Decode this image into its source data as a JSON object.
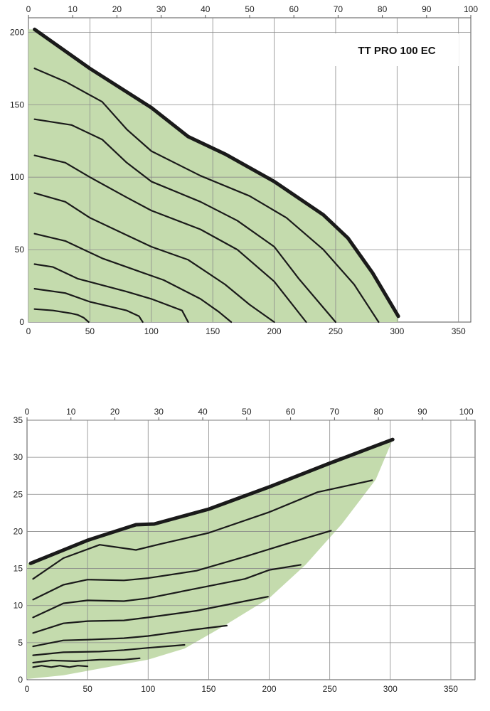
{
  "chart_data": [
    {
      "type": "line",
      "title": "TT PRO 100 EC",
      "xlim": [
        0,
        360
      ],
      "ylim": [
        0,
        210
      ],
      "x2lim": [
        0,
        100
      ],
      "x_ticks": [
        0,
        50,
        100,
        150,
        200,
        250,
        300,
        350
      ],
      "y_ticks": [
        0,
        50,
        100,
        150,
        200
      ],
      "x2_ticks": [
        0,
        10,
        20,
        30,
        40,
        50,
        60,
        70,
        80,
        90,
        100
      ],
      "grid": true,
      "fill_color": "#c4dbad",
      "line_color": "#1a1a1a",
      "envelope": [
        [
          3,
          202
        ],
        [
          50,
          175
        ],
        [
          100,
          148
        ],
        [
          130,
          128
        ],
        [
          160,
          116
        ],
        [
          200,
          97
        ],
        [
          240,
          74
        ],
        [
          260,
          58
        ],
        [
          280,
          34
        ],
        [
          301,
          4
        ],
        [
          301,
          0
        ],
        [
          0,
          0
        ],
        [
          0,
          202
        ]
      ],
      "series": [
        {
          "emphasis": "thick",
          "points": [
            [
              5,
              202
            ],
            [
              50,
              175
            ],
            [
              100,
              148
            ],
            [
              130,
              128
            ],
            [
              160,
              116
            ],
            [
              200,
              97
            ],
            [
              240,
              74
            ],
            [
              260,
              58
            ],
            [
              280,
              34
            ],
            [
              301,
              4
            ]
          ]
        },
        {
          "points": [
            [
              5,
              175
            ],
            [
              30,
              166
            ],
            [
              60,
              152
            ],
            [
              80,
              133
            ],
            [
              100,
              118
            ],
            [
              140,
              101
            ],
            [
              180,
              87
            ],
            [
              210,
              72
            ],
            [
              240,
              50
            ],
            [
              265,
              26
            ],
            [
              285,
              0
            ]
          ]
        },
        {
          "points": [
            [
              5,
              140
            ],
            [
              35,
              136
            ],
            [
              60,
              126
            ],
            [
              80,
              110
            ],
            [
              100,
              97
            ],
            [
              140,
              83
            ],
            [
              170,
              70
            ],
            [
              200,
              52
            ],
            [
              220,
              30
            ],
            [
              250,
              0
            ]
          ]
        },
        {
          "points": [
            [
              5,
              115
            ],
            [
              30,
              110
            ],
            [
              50,
              100
            ],
            [
              80,
              86
            ],
            [
              100,
              77
            ],
            [
              140,
              64
            ],
            [
              170,
              50
            ],
            [
              200,
              28
            ],
            [
              226,
              0
            ]
          ]
        },
        {
          "points": [
            [
              5,
              89
            ],
            [
              30,
              83
            ],
            [
              50,
              72
            ],
            [
              80,
              60
            ],
            [
              100,
              52
            ],
            [
              130,
              43
            ],
            [
              160,
              26
            ],
            [
              180,
              12
            ],
            [
              200,
              0
            ]
          ]
        },
        {
          "points": [
            [
              5,
              61
            ],
            [
              30,
              56
            ],
            [
              60,
              44
            ],
            [
              90,
              35
            ],
            [
              110,
              29
            ],
            [
              140,
              16
            ],
            [
              155,
              7
            ],
            [
              165,
              0
            ]
          ]
        },
        {
          "points": [
            [
              5,
              40
            ],
            [
              20,
              38
            ],
            [
              40,
              30
            ],
            [
              80,
              21
            ],
            [
              100,
              16
            ],
            [
              125,
              8
            ],
            [
              130,
              0
            ]
          ]
        },
        {
          "points": [
            [
              5,
              23
            ],
            [
              30,
              20
            ],
            [
              50,
              14
            ],
            [
              80,
              8
            ],
            [
              90,
              4
            ],
            [
              93,
              0
            ]
          ]
        },
        {
          "points": [
            [
              5,
              9
            ],
            [
              20,
              8
            ],
            [
              35,
              6
            ],
            [
              40,
              5
            ],
            [
              45,
              3
            ],
            [
              49,
              0
            ]
          ]
        }
      ]
    },
    {
      "type": "line",
      "xlim": [
        0,
        370
      ],
      "ylim": [
        0,
        35
      ],
      "x2lim": [
        0,
        102
      ],
      "x_ticks": [
        0,
        50,
        100,
        150,
        200,
        250,
        300,
        350
      ],
      "y_ticks": [
        0,
        5,
        10,
        15,
        20,
        25,
        30,
        35
      ],
      "x2_ticks": [
        0,
        10,
        20,
        30,
        40,
        50,
        60,
        70,
        80,
        90,
        100
      ],
      "grid": true,
      "fill_color": "#c4dbad",
      "line_color": "#1a1a1a",
      "envelope": [
        [
          3,
          15.7
        ],
        [
          50,
          18.8
        ],
        [
          90,
          20.9
        ],
        [
          105,
          21
        ],
        [
          150,
          23
        ],
        [
          200,
          26
        ],
        [
          250,
          29.2
        ],
        [
          302,
          32.4
        ],
        [
          288,
          27
        ],
        [
          260,
          21
        ],
        [
          230,
          15.5
        ],
        [
          200,
          11
        ],
        [
          160,
          7
        ],
        [
          130,
          4.2
        ],
        [
          100,
          2.7
        ],
        [
          60,
          1.5
        ],
        [
          30,
          0.6
        ],
        [
          0,
          0.1
        ],
        [
          0,
          15.7
        ]
      ],
      "series": [
        {
          "emphasis": "thick",
          "points": [
            [
              3,
              15.7
            ],
            [
              50,
              18.8
            ],
            [
              90,
              20.9
            ],
            [
              105,
              21
            ],
            [
              150,
              23
            ],
            [
              200,
              26
            ],
            [
              250,
              29.2
            ],
            [
              302,
              32.4
            ]
          ]
        },
        {
          "points": [
            [
              5,
              13.6
            ],
            [
              30,
              16.4
            ],
            [
              60,
              18.2
            ],
            [
              90,
              17.5
            ],
            [
              110,
              18.3
            ],
            [
              150,
              19.8
            ],
            [
              200,
              22.6
            ],
            [
              240,
              25.3
            ],
            [
              285,
              26.9
            ]
          ]
        },
        {
          "points": [
            [
              5,
              10.8
            ],
            [
              30,
              12.8
            ],
            [
              50,
              13.5
            ],
            [
              80,
              13.4
            ],
            [
              100,
              13.7
            ],
            [
              140,
              14.7
            ],
            [
              180,
              16.6
            ],
            [
              220,
              18.6
            ],
            [
              251,
              20.1
            ]
          ]
        },
        {
          "points": [
            [
              5,
              8.4
            ],
            [
              30,
              10.3
            ],
            [
              50,
              10.7
            ],
            [
              80,
              10.6
            ],
            [
              100,
              11
            ],
            [
              140,
              12.3
            ],
            [
              180,
              13.6
            ],
            [
              200,
              14.8
            ],
            [
              226,
              15.5
            ]
          ]
        },
        {
          "points": [
            [
              5,
              6.3
            ],
            [
              30,
              7.6
            ],
            [
              50,
              7.9
            ],
            [
              80,
              8
            ],
            [
              100,
              8.4
            ],
            [
              140,
              9.3
            ],
            [
              180,
              10.6
            ],
            [
              199,
              11.2
            ]
          ]
        },
        {
          "points": [
            [
              5,
              4.5
            ],
            [
              30,
              5.3
            ],
            [
              50,
              5.4
            ],
            [
              80,
              5.6
            ],
            [
              100,
              5.9
            ],
            [
              140,
              6.8
            ],
            [
              165,
              7.3
            ]
          ]
        },
        {
          "points": [
            [
              5,
              3.3
            ],
            [
              30,
              3.7
            ],
            [
              60,
              3.8
            ],
            [
              80,
              4
            ],
            [
              100,
              4.3
            ],
            [
              130,
              4.7
            ]
          ]
        },
        {
          "points": [
            [
              5,
              2.3
            ],
            [
              20,
              2.6
            ],
            [
              40,
              2.5
            ],
            [
              60,
              2.7
            ],
            [
              80,
              2.7
            ],
            [
              93,
              2.9
            ]
          ]
        },
        {
          "points": [
            [
              5,
              1.7
            ],
            [
              12,
              1.9
            ],
            [
              20,
              1.7
            ],
            [
              27,
              1.9
            ],
            [
              35,
              1.7
            ],
            [
              42,
              1.9
            ],
            [
              50,
              1.8
            ]
          ]
        }
      ]
    }
  ]
}
